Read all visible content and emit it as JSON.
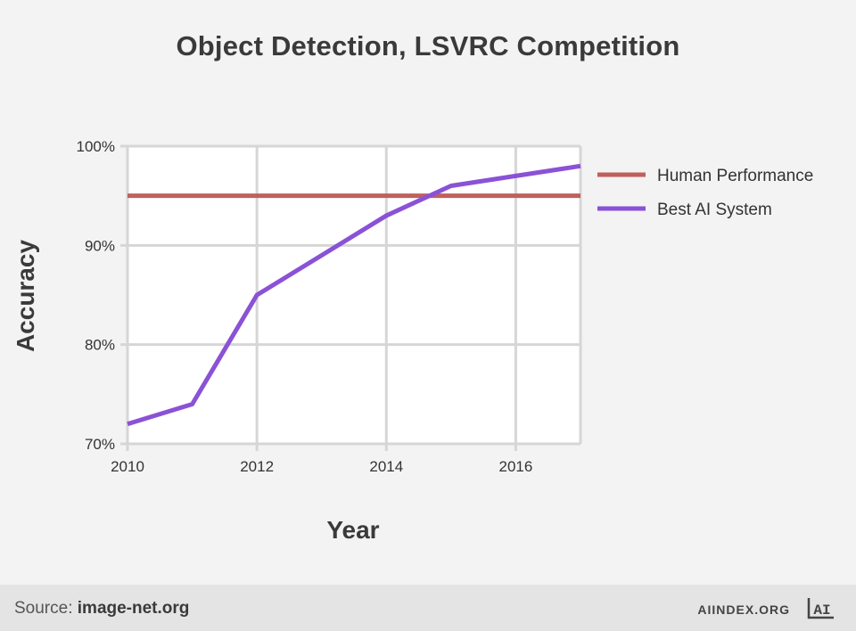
{
  "chart_data": {
    "type": "line",
    "title": "Object Detection, LSVRC Competition",
    "xlabel": "Year",
    "ylabel": "Accuracy",
    "xlim": [
      2010,
      2017
    ],
    "ylim": [
      70,
      100
    ],
    "x_ticks": [
      "2010",
      "2012",
      "2014",
      "2016"
    ],
    "y_ticks": [
      "70%",
      "80%",
      "90%",
      "100%"
    ],
    "grid": true,
    "legend_position": "right",
    "series": [
      {
        "name": "Human Performance",
        "color": "#c0605c",
        "x": [
          2010,
          2017
        ],
        "y": [
          95,
          95
        ]
      },
      {
        "name": "Best AI System",
        "color": "#8a52d6",
        "x": [
          2010,
          2011,
          2012,
          2013,
          2014,
          2015,
          2016,
          2017
        ],
        "y": [
          72,
          74,
          85,
          89,
          93,
          96,
          97,
          98
        ]
      }
    ]
  },
  "footer": {
    "source_label": "Source:",
    "source_value": "image-net.org",
    "brand": "AIINDEX.ORG",
    "logo_text": "AI"
  }
}
